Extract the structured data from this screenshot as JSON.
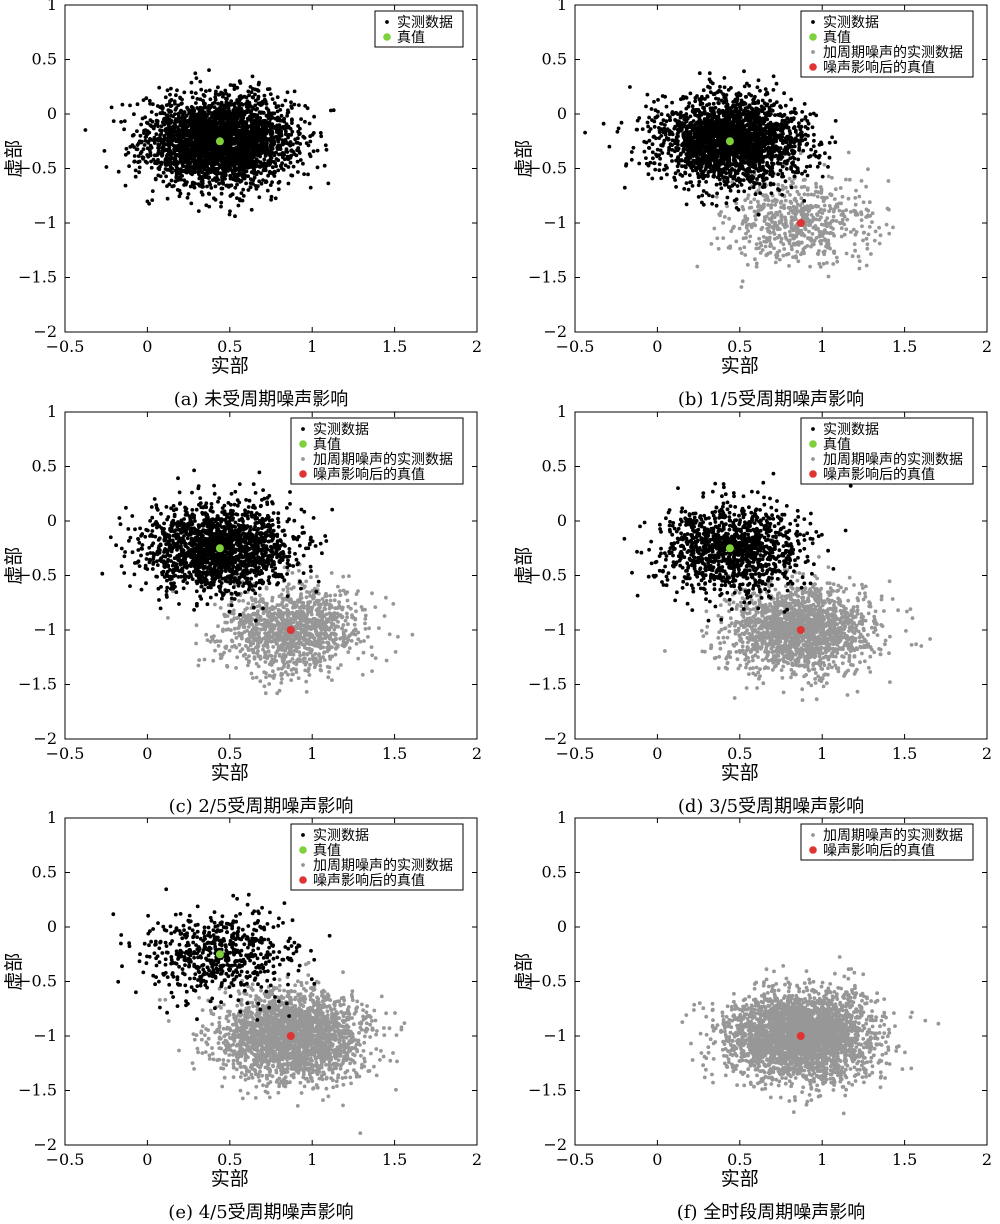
{
  "figure": {
    "colors": {
      "measured": "#000000",
      "noisy": "#979797",
      "true_value": "#7fd13b",
      "noisy_true_value": "#e03333"
    }
  },
  "chart_data": [
    {
      "type": "scatter",
      "caption": "(a) 未受周期噪声影响",
      "xlabel": "实部",
      "ylabel": "虚部",
      "xlim": [
        -0.5,
        2
      ],
      "ylim": [
        -2,
        1
      ],
      "xticks": [
        -0.5,
        0,
        0.5,
        1,
        1.5,
        2
      ],
      "yticks": [
        1,
        0.5,
        0,
        -0.5,
        -1,
        -1.5,
        -2
      ],
      "xtick_labels": [
        "−0.5",
        "0",
        "0.5",
        "1",
        "1.5",
        "2"
      ],
      "ytick_labels": [
        "1",
        "0.5",
        "0",
        "−0.5",
        "−1",
        "−1.5",
        "−2"
      ],
      "legend": [
        "实测数据",
        "真值"
      ],
      "measured_fraction": 1.0,
      "series": [
        {
          "name": "实测数据",
          "center": [
            0.44,
            -0.25
          ],
          "spread": [
            0.22,
            0.2
          ],
          "approx_count": 3000
        },
        {
          "name": "真值",
          "points": [
            [
              0.44,
              -0.25
            ]
          ]
        }
      ]
    },
    {
      "type": "scatter",
      "caption": "(b) 1/5受周期噪声影响",
      "xlabel": "实部",
      "ylabel": "虚部",
      "xlim": [
        -0.5,
        2
      ],
      "ylim": [
        -2,
        1
      ],
      "xticks": [
        -0.5,
        0,
        0.5,
        1,
        1.5,
        2
      ],
      "yticks": [
        1,
        0.5,
        0,
        -0.5,
        -1,
        -1.5,
        -2
      ],
      "xtick_labels": [
        "−0.5",
        "0",
        "0.5",
        "1",
        "1.5",
        "2"
      ],
      "ytick_labels": [
        "1",
        "0.5",
        "0",
        "−0.5",
        "−1",
        "−1.5",
        "−2"
      ],
      "legend": [
        "实测数据",
        "真值",
        "加周期噪声的实测数据",
        "噪声影响后的真值"
      ],
      "measured_fraction": 0.8,
      "series": [
        {
          "name": "实测数据",
          "center": [
            0.44,
            -0.25
          ],
          "spread": [
            0.22,
            0.2
          ],
          "approx_count": 2400
        },
        {
          "name": "真值",
          "points": [
            [
              0.44,
              -0.25
            ]
          ]
        },
        {
          "name": "加周期噪声的实测数据",
          "center": [
            0.87,
            -1.0
          ],
          "spread": [
            0.22,
            0.2
          ],
          "approx_count": 600
        },
        {
          "name": "噪声影响后的真值",
          "points": [
            [
              0.87,
              -1.0
            ]
          ]
        }
      ]
    },
    {
      "type": "scatter",
      "caption": "(c) 2/5受周期噪声影响",
      "xlabel": "实部",
      "ylabel": "虚部",
      "xlim": [
        -0.5,
        2
      ],
      "ylim": [
        -2,
        1
      ],
      "xticks": [
        -0.5,
        0,
        0.5,
        1,
        1.5,
        2
      ],
      "yticks": [
        1,
        0.5,
        0,
        -0.5,
        -1,
        -1.5,
        -2
      ],
      "xtick_labels": [
        "−0.5",
        "0",
        "0.5",
        "1",
        "1.5",
        "2"
      ],
      "ytick_labels": [
        "1",
        "0.5",
        "0",
        "−0.5",
        "−1",
        "−1.5",
        "−2"
      ],
      "legend": [
        "实测数据",
        "真值",
        "加周期噪声的实测数据",
        "噪声影响后的真值"
      ],
      "measured_fraction": 0.6,
      "series": [
        {
          "name": "实测数据",
          "center": [
            0.44,
            -0.25
          ],
          "spread": [
            0.22,
            0.2
          ],
          "approx_count": 1800
        },
        {
          "name": "真值",
          "points": [
            [
              0.44,
              -0.25
            ]
          ]
        },
        {
          "name": "加周期噪声的实测数据",
          "center": [
            0.87,
            -1.0
          ],
          "spread": [
            0.22,
            0.2
          ],
          "approx_count": 1200
        },
        {
          "name": "噪声影响后的真值",
          "points": [
            [
              0.87,
              -1.0
            ]
          ]
        }
      ]
    },
    {
      "type": "scatter",
      "caption": "(d) 3/5受周期噪声影响",
      "xlabel": "实部",
      "ylabel": "虚部",
      "xlim": [
        -0.5,
        2
      ],
      "ylim": [
        -2,
        1
      ],
      "xticks": [
        -0.5,
        0,
        0.5,
        1,
        1.5,
        2
      ],
      "yticks": [
        1,
        0.5,
        0,
        -0.5,
        -1,
        -1.5,
        -2
      ],
      "xtick_labels": [
        "−0.5",
        "0",
        "0.5",
        "1",
        "1.5",
        "2"
      ],
      "ytick_labels": [
        "1",
        "0.5",
        "0",
        "−0.5",
        "−1",
        "−1.5",
        "−2"
      ],
      "legend": [
        "实测数据",
        "真值",
        "加周期噪声的实测数据",
        "噪声影响后的真值"
      ],
      "measured_fraction": 0.4,
      "series": [
        {
          "name": "实测数据",
          "center": [
            0.44,
            -0.25
          ],
          "spread": [
            0.22,
            0.2
          ],
          "approx_count": 1200
        },
        {
          "name": "真值",
          "points": [
            [
              0.44,
              -0.25
            ]
          ]
        },
        {
          "name": "加周期噪声的实测数据",
          "center": [
            0.87,
            -1.0
          ],
          "spread": [
            0.22,
            0.2
          ],
          "approx_count": 1800
        },
        {
          "name": "噪声影响后的真值",
          "points": [
            [
              0.87,
              -1.0
            ]
          ]
        }
      ]
    },
    {
      "type": "scatter",
      "caption": "(e) 4/5受周期噪声影响",
      "xlabel": "实部",
      "ylabel": "虚部",
      "xlim": [
        -0.5,
        2
      ],
      "ylim": [
        -2,
        1
      ],
      "xticks": [
        -0.5,
        0,
        0.5,
        1,
        1.5,
        2
      ],
      "yticks": [
        1,
        0.5,
        0,
        -0.5,
        -1,
        -1.5,
        -2
      ],
      "xtick_labels": [
        "−0.5",
        "0",
        "0.5",
        "1",
        "1.5",
        "2"
      ],
      "ytick_labels": [
        "1",
        "0.5",
        "0",
        "−0.5",
        "−1",
        "−1.5",
        "−2"
      ],
      "legend": [
        "实测数据",
        "真值",
        "加周期噪声的实测数据",
        "噪声影响后的真值"
      ],
      "measured_fraction": 0.2,
      "series": [
        {
          "name": "实测数据",
          "center": [
            0.44,
            -0.25
          ],
          "spread": [
            0.22,
            0.2
          ],
          "approx_count": 600
        },
        {
          "name": "真值",
          "points": [
            [
              0.44,
              -0.25
            ]
          ]
        },
        {
          "name": "加周期噪声的实测数据",
          "center": [
            0.87,
            -1.0
          ],
          "spread": [
            0.22,
            0.2
          ],
          "approx_count": 2400
        },
        {
          "name": "噪声影响后的真值",
          "points": [
            [
              0.87,
              -1.0
            ]
          ]
        }
      ]
    },
    {
      "type": "scatter",
      "caption": "(f) 全时段周期噪声影响",
      "xlabel": "实部",
      "ylabel": "虚部",
      "xlim": [
        -0.5,
        2
      ],
      "ylim": [
        -2,
        1
      ],
      "xticks": [
        -0.5,
        0,
        0.5,
        1,
        1.5,
        2
      ],
      "yticks": [
        1,
        0.5,
        0,
        -0.5,
        -1,
        -1.5,
        -2
      ],
      "xtick_labels": [
        "−0.5",
        "0",
        "0.5",
        "1",
        "1.5",
        "2"
      ],
      "ytick_labels": [
        "1",
        "0.5",
        "0",
        "−0.5",
        "−1",
        "−1.5",
        "−2"
      ],
      "legend": [
        "加周期噪声的实测数据",
        "噪声影响后的真值"
      ],
      "measured_fraction": 0.0,
      "series": [
        {
          "name": "加周期噪声的实测数据",
          "center": [
            0.87,
            -1.0
          ],
          "spread": [
            0.22,
            0.2
          ],
          "approx_count": 3000
        },
        {
          "name": "噪声影响后的真值",
          "points": [
            [
              0.87,
              -1.0
            ]
          ]
        }
      ]
    }
  ]
}
